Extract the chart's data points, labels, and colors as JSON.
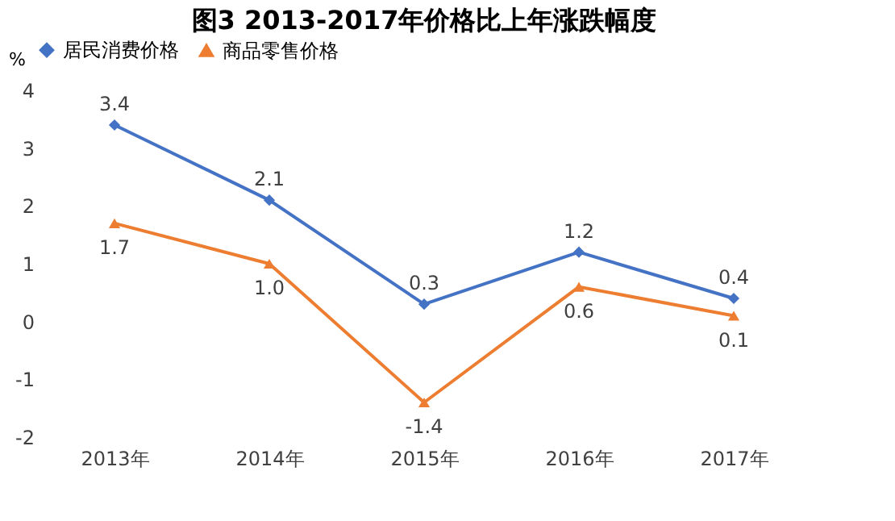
{
  "chart_data": {
    "type": "line",
    "title": "图3  2013-2017年价格比上年涨跌幅度",
    "ylabel": "%",
    "categories": [
      "2013年",
      "2014年",
      "2015年",
      "2016年",
      "2017年"
    ],
    "series": [
      {
        "name": "居民消费价格",
        "color": "#4472c4",
        "marker": "diamond",
        "values": [
          3.4,
          2.1,
          0.3,
          1.2,
          0.4
        ],
        "value_labels": [
          "3.4",
          "2.1",
          "0.3",
          "1.2",
          "0.4"
        ]
      },
      {
        "name": "商品零售价格",
        "color": "#ed7d31",
        "marker": "triangle",
        "values": [
          1.7,
          1.0,
          -1.4,
          0.6,
          0.1
        ],
        "value_labels": [
          "1.7",
          "1.0",
          "-1.4",
          "0.6",
          "0.1"
        ]
      }
    ],
    "ylim": [
      -2,
      4
    ],
    "yticks": [
      -2,
      -1,
      0,
      1,
      2,
      3,
      4
    ],
    "grid": false,
    "legend": "top"
  }
}
